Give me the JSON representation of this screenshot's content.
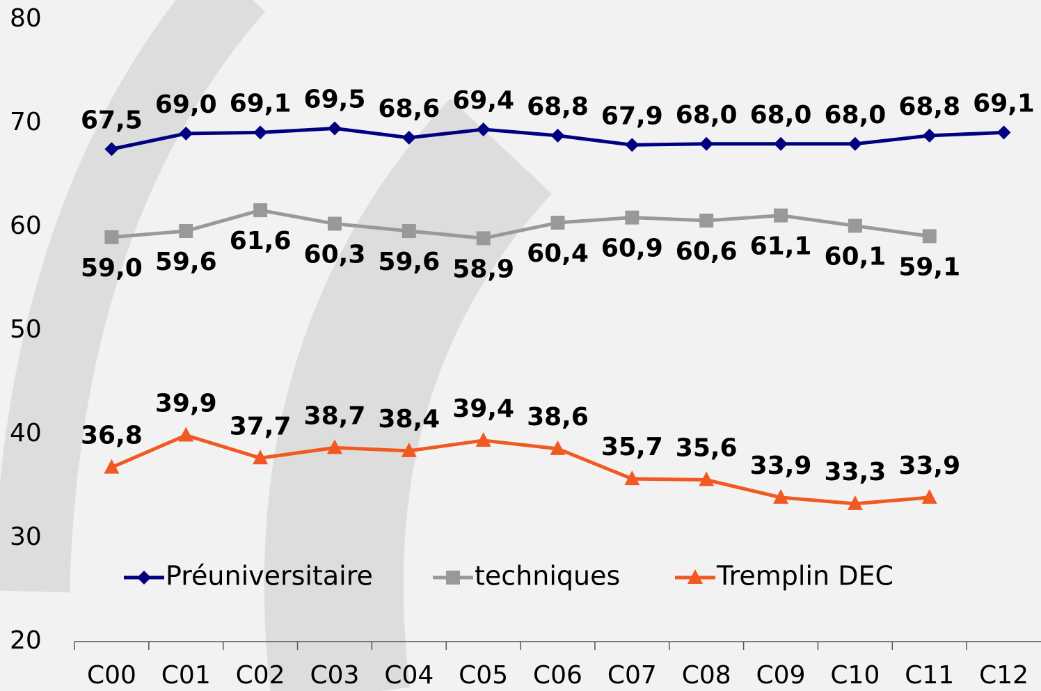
{
  "chart_data": {
    "type": "line",
    "categories": [
      "C00",
      "C01",
      "C02",
      "C03",
      "C04",
      "C05",
      "C06",
      "C07",
      "C08",
      "C09",
      "C10",
      "C11",
      "C12"
    ],
    "series": [
      {
        "name": "Préuniversitaire",
        "color": "#000080",
        "marker": "diamond",
        "values": [
          67.5,
          69.0,
          69.1,
          69.5,
          68.6,
          69.4,
          68.8,
          67.9,
          68.0,
          68.0,
          68.0,
          68.8,
          69.1
        ],
        "value_labels": [
          "67,5",
          "69,0",
          "69,1",
          "69,5",
          "68,6",
          "69,4",
          "68,8",
          "67,9",
          "68,0",
          "68,0",
          "68,0",
          "68,8",
          "69,1"
        ]
      },
      {
        "name": "techniques",
        "color": "#999999",
        "marker": "square",
        "values": [
          59.0,
          59.6,
          61.6,
          60.3,
          59.6,
          58.9,
          60.4,
          60.9,
          60.6,
          61.1,
          60.1,
          59.1,
          null
        ],
        "value_labels": [
          "59,0",
          "59,6",
          "61,6",
          "60,3",
          "59,6",
          "58,9",
          "60,4",
          "60,9",
          "60,6",
          "61,1",
          "60,1",
          "59,1",
          null
        ]
      },
      {
        "name": "Tremplin DEC",
        "color": "#f05a22",
        "marker": "triangle",
        "values": [
          36.8,
          39.9,
          37.7,
          38.7,
          38.4,
          39.4,
          38.6,
          35.7,
          35.6,
          33.9,
          33.3,
          33.9,
          null
        ],
        "value_labels": [
          "36,8",
          "39,9",
          "37,7",
          "38,7",
          "38,4",
          "39,4",
          "38,6",
          "35,7",
          "35,6",
          "33,9",
          "33,3",
          "33,9",
          null
        ]
      }
    ],
    "ylim": [
      20,
      80
    ],
    "yticks": [
      20,
      30,
      40,
      50,
      60,
      70,
      80
    ],
    "grid": false
  }
}
